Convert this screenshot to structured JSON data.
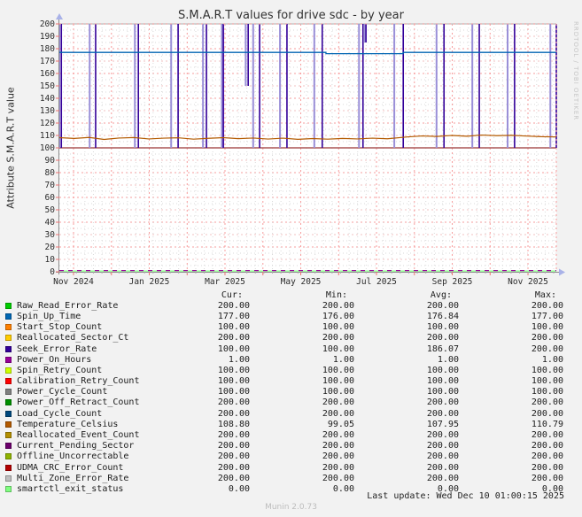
{
  "title": "S.M.A.R.T values for drive sdc - by year",
  "y_axis_label": "Attribute S.M.A.R.T value",
  "watermark": "RRDTOOL / TOBI OETIKER",
  "footer": {
    "last_update": "Last update: Wed Dec 10 01:00:15 2025",
    "version": "Munin 2.0.73"
  },
  "colors": {
    "background": "#f2f2f2",
    "canvas": "#ffffff",
    "grid_major": "#f79c9c",
    "grid_mid": "#f2c0c0",
    "grid_minor": "#dadada",
    "axis": "#8a8a8a",
    "arrow": "#a9b2e8",
    "tick_red": "#ee7070",
    "text": "#2b2b2b"
  },
  "legend": {
    "columns": [
      "Cur:",
      "Min:",
      "Avg:",
      "Max:"
    ]
  },
  "chart_data": {
    "type": "line",
    "title": "S.M.A.R.T values for drive sdc - by year",
    "ylabel": "Attribute S.M.A.R.T value",
    "ylim": [
      0,
      200
    ],
    "y_tick_step": 10,
    "grid": "on",
    "legend_position": "bottom",
    "x_tick_labels": [
      {
        "label": "Nov 2024",
        "f": 0.0285
      },
      {
        "label": "Jan 2025",
        "f": 0.1809
      },
      {
        "label": "Mar 2025",
        "f": 0.3333
      },
      {
        "label": "May 2025",
        "f": 0.4858
      },
      {
        "label": "Jul 2025",
        "f": 0.6382
      },
      {
        "label": "Sep 2025",
        "f": 0.7906
      },
      {
        "label": "Nov 2025",
        "f": 0.943
      }
    ],
    "month_lines_f": [
      0.0285,
      0.1048,
      0.1809,
      0.2572,
      0.3333,
      0.4096,
      0.4858,
      0.562,
      0.6382,
      0.7144,
      0.7906,
      0.8668,
      0.943
    ],
    "week_step_f": 0.01715,
    "series": [
      {
        "name": "Raw_Read_Error_Rate",
        "color": "#00CC00",
        "cur": "200.00",
        "min": "200.00",
        "avg": "200.00",
        "max": "200.00"
      },
      {
        "name": "Spin_Up_Time",
        "color": "#0066B3",
        "cur": "177.00",
        "min": "176.00",
        "avg": "176.84",
        "max": "177.00"
      },
      {
        "name": "Start_Stop_Count",
        "color": "#FF8000",
        "cur": "100.00",
        "min": "100.00",
        "avg": "100.00",
        "max": "100.00"
      },
      {
        "name": "Reallocated_Sector_Ct",
        "color": "#FFCC00",
        "cur": "200.00",
        "min": "200.00",
        "avg": "200.00",
        "max": "200.00"
      },
      {
        "name": "Seek_Error_Rate",
        "color": "#330099",
        "cur": "100.00",
        "min": "100.00",
        "avg": "186.07",
        "max": "200.00"
      },
      {
        "name": "Power_On_Hours",
        "color": "#990099",
        "cur": "1.00",
        "min": "1.00",
        "avg": "1.00",
        "max": "1.00"
      },
      {
        "name": "Spin_Retry_Count",
        "color": "#CCFF00",
        "cur": "100.00",
        "min": "100.00",
        "avg": "100.00",
        "max": "100.00"
      },
      {
        "name": "Calibration_Retry_Count",
        "color": "#FF0000",
        "cur": "100.00",
        "min": "100.00",
        "avg": "100.00",
        "max": "100.00"
      },
      {
        "name": "Power_Cycle_Count",
        "color": "#808080",
        "cur": "100.00",
        "min": "100.00",
        "avg": "100.00",
        "max": "100.00"
      },
      {
        "name": "Power_Off_Retract_Count",
        "color": "#008F00",
        "cur": "200.00",
        "min": "200.00",
        "avg": "200.00",
        "max": "200.00"
      },
      {
        "name": "Load_Cycle_Count",
        "color": "#00487D",
        "cur": "200.00",
        "min": "200.00",
        "avg": "200.00",
        "max": "200.00"
      },
      {
        "name": "Temperature_Celsius",
        "color": "#B35A00",
        "cur": "108.80",
        "min": "99.05",
        "avg": "107.95",
        "max": "110.79"
      },
      {
        "name": "Reallocated_Event_Count",
        "color": "#B38F00",
        "cur": "200.00",
        "min": "200.00",
        "avg": "200.00",
        "max": "200.00"
      },
      {
        "name": "Current_Pending_Sector",
        "color": "#6B006B",
        "cur": "200.00",
        "min": "200.00",
        "avg": "200.00",
        "max": "200.00"
      },
      {
        "name": "Offline_Uncorrectable",
        "color": "#8FB300",
        "cur": "200.00",
        "min": "200.00",
        "avg": "200.00",
        "max": "200.00"
      },
      {
        "name": "UDMA_CRC_Error_Count",
        "color": "#B30000",
        "cur": "200.00",
        "min": "200.00",
        "avg": "200.00",
        "max": "200.00"
      },
      {
        "name": "Multi_Zone_Error_Rate",
        "color": "#BEBEBE",
        "cur": "200.00",
        "min": "200.00",
        "avg": "200.00",
        "max": "200.00"
      },
      {
        "name": "smartctl_exit_status",
        "color": "#80FF80",
        "cur": "0.00",
        "min": "0.00",
        "avg": "0.00",
        "max": "0.00"
      }
    ],
    "spin_up_steps": [
      [
        0,
        177
      ],
      [
        0.5365,
        177
      ],
      [
        0.5365,
        176
      ],
      [
        0.6916,
        176
      ],
      [
        0.6916,
        177
      ],
      [
        1,
        177
      ]
    ],
    "seek_dips": [
      [
        0.0,
        0.004
      ],
      [
        0.061,
        0.073
      ],
      [
        0.152,
        0.159
      ],
      [
        0.225,
        0.239
      ],
      [
        0.289,
        0.296
      ],
      [
        0.327,
        0.33
      ],
      [
        0.375,
        0.38,
        150
      ],
      [
        0.39,
        0.403
      ],
      [
        0.444,
        0.458
      ],
      [
        0.513,
        0.529
      ],
      [
        0.603,
        0.611
      ],
      [
        0.615,
        0.617,
        185
      ],
      [
        0.674,
        0.692
      ],
      [
        0.759,
        0.774
      ],
      [
        0.831,
        0.845
      ],
      [
        0.902,
        0.916
      ],
      [
        0.988,
        1.0
      ]
    ],
    "temperature_points": [
      [
        0,
        108.2
      ],
      [
        0.03,
        107.6
      ],
      [
        0.06,
        108.4
      ],
      [
        0.09,
        106.8
      ],
      [
        0.12,
        107.9
      ],
      [
        0.15,
        108.3
      ],
      [
        0.18,
        107.2
      ],
      [
        0.21,
        107.8
      ],
      [
        0.24,
        108.1
      ],
      [
        0.27,
        107.0
      ],
      [
        0.3,
        107.7
      ],
      [
        0.33,
        108.2
      ],
      [
        0.36,
        107.4
      ],
      [
        0.39,
        107.9
      ],
      [
        0.42,
        107.1
      ],
      [
        0.45,
        107.8
      ],
      [
        0.48,
        106.9
      ],
      [
        0.51,
        107.5
      ],
      [
        0.54,
        107.0
      ],
      [
        0.57,
        107.6
      ],
      [
        0.6,
        107.2
      ],
      [
        0.63,
        107.8
      ],
      [
        0.66,
        107.3
      ],
      [
        0.7,
        108.8
      ],
      [
        0.73,
        109.6
      ],
      [
        0.76,
        109.2
      ],
      [
        0.79,
        110.0
      ],
      [
        0.82,
        109.4
      ],
      [
        0.85,
        110.3
      ],
      [
        0.88,
        109.8
      ],
      [
        0.91,
        110.1
      ],
      [
        0.94,
        109.5
      ],
      [
        0.97,
        109.0
      ],
      [
        1.0,
        108.8
      ]
    ],
    "render": [
      {
        "k": "hline",
        "v": 200,
        "c": "#00CC00",
        "w": 1
      },
      {
        "k": "hline",
        "v": 100,
        "c": "#FF8000",
        "w": 1
      },
      {
        "k": "hline",
        "v": 200,
        "c": "#FFCC00",
        "w": 1
      },
      {
        "k": "hline",
        "v": 100,
        "c": "#CCFF00",
        "w": 1
      },
      {
        "k": "hline",
        "v": 100,
        "c": "#FF0000",
        "w": 1.6
      },
      {
        "k": "hline",
        "v": 100,
        "c": "#808080",
        "w": 1.1
      },
      {
        "k": "hline",
        "v": 200,
        "c": "#008F00",
        "w": 1
      },
      {
        "k": "hline",
        "v": 200,
        "c": "#00487D",
        "w": 1
      },
      {
        "k": "hline",
        "v": 200,
        "c": "#B38F00",
        "w": 1
      },
      {
        "k": "hline",
        "v": 200,
        "c": "#6B006B",
        "w": 1
      },
      {
        "k": "hline",
        "v": 200,
        "c": "#8FB300",
        "w": 1
      },
      {
        "k": "hline",
        "v": 200,
        "c": "#B30000",
        "w": 1
      },
      {
        "k": "hline",
        "v": 200,
        "c": "#BEBEBE",
        "w": 1.2
      },
      {
        "k": "dips",
        "src": "seek_dips",
        "cA": "#9a8fd8",
        "cB": "#330099",
        "top": 200,
        "low": 100
      },
      {
        "k": "steps",
        "src": "spin_up_steps",
        "c": "#0066B3",
        "w": 1.3
      },
      {
        "k": "hline",
        "v": 0.6,
        "c": "#80FF80",
        "w": 1.3
      },
      {
        "k": "hline",
        "v": 1,
        "c": "#990099",
        "w": 1.3,
        "dash": "5,5"
      },
      {
        "k": "poly",
        "src": "temperature_points",
        "c": "#B35A00",
        "w": 1.2
      }
    ]
  }
}
